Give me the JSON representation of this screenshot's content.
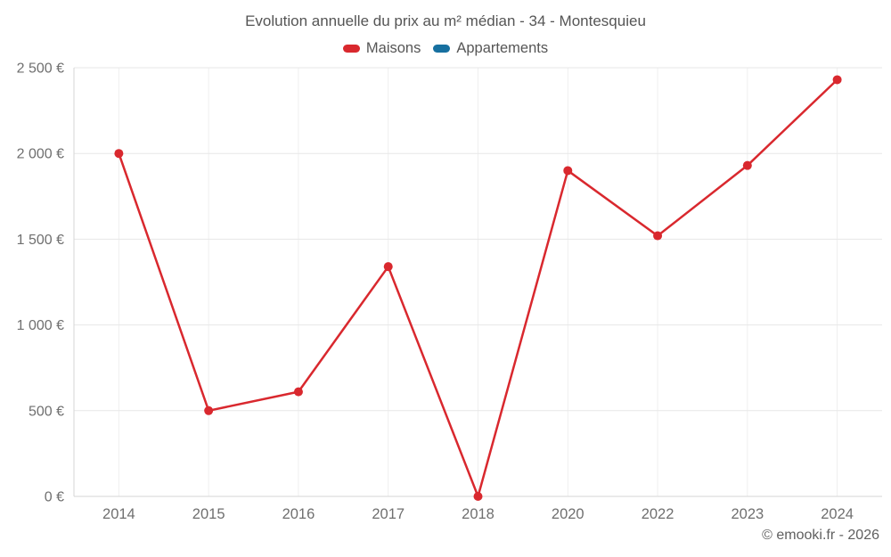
{
  "title": "Evolution annuelle du prix au m² médian - 34 - Montesquieu",
  "footer": "© emooki.fr - 2026",
  "legend": [
    {
      "label": "Maisons",
      "color": "#d9282e"
    },
    {
      "label": "Appartements",
      "color": "#1770a0"
    }
  ],
  "colors": {
    "grid_vertical": "#efefef",
    "grid_horizontal": "#e7e7e7",
    "axis_line": "#d6d6d6",
    "tick_text": "#6f6f6f",
    "maisons_red": "#d9282e",
    "appartements_blue": "#1770a0"
  },
  "chart_data": {
    "type": "line",
    "title": "Evolution annuelle du prix au m² médian - 34 - Montesquieu",
    "categories": [
      "2014",
      "2015",
      "2016",
      "2017",
      "2018",
      "2020",
      "2022",
      "2023",
      "2024"
    ],
    "series": [
      {
        "name": "Maisons",
        "color": "#d9282e",
        "values": [
          2000,
          500,
          610,
          1340,
          0,
          1900,
          1520,
          1930,
          2430
        ]
      },
      {
        "name": "Appartements",
        "color": "#1770a0",
        "values": []
      }
    ],
    "xlabel": "",
    "ylabel": "",
    "ylim": [
      0,
      2500
    ],
    "yticks": [
      0,
      500,
      1000,
      1500,
      2000,
      2500
    ],
    "ytick_labels": [
      "0 €",
      "500 €",
      "1 000 €",
      "1 500 €",
      "2 000 €",
      "2 500 €"
    ],
    "grid": true,
    "legend_position": "top"
  }
}
